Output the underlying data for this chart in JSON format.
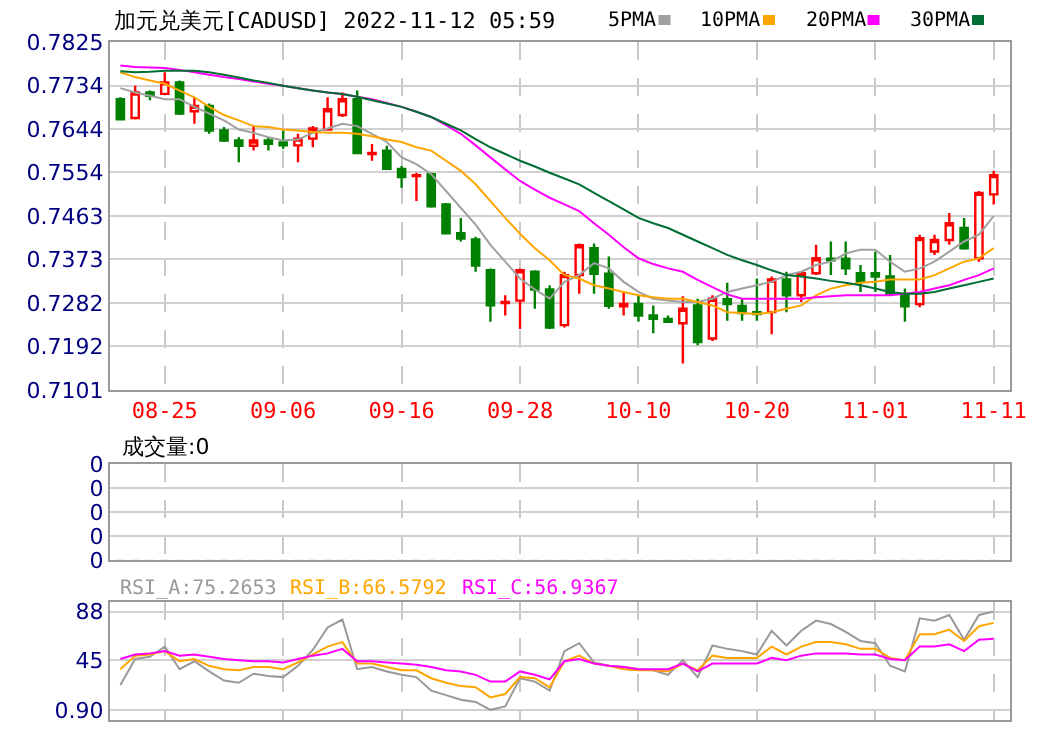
{
  "chart_data": [
    {
      "type": "candlestick",
      "title": "加元兑美元[CADUSD] 2022-11-12 05:59",
      "categories": [
        null,
        null,
        null,
        "08-25",
        null,
        null,
        null,
        null,
        null,
        null,
        null,
        "09-06",
        null,
        null,
        null,
        null,
        null,
        null,
        null,
        "09-16",
        null,
        null,
        null,
        null,
        null,
        null,
        null,
        "09-28",
        null,
        null,
        null,
        null,
        null,
        null,
        null,
        "10-10",
        null,
        null,
        null,
        null,
        null,
        null,
        null,
        "10-20",
        null,
        null,
        null,
        null,
        null,
        null,
        null,
        "11-01",
        null,
        null,
        null,
        null,
        null,
        null,
        null,
        "11-11"
      ],
      "ohlc": [
        [
          0.7706,
          0.771,
          0.7662,
          0.7664
        ],
        [
          0.7667,
          0.7734,
          0.7664,
          0.772
        ],
        [
          0.772,
          0.7724,
          0.7704,
          0.7713
        ],
        [
          0.7717,
          0.7762,
          0.7715,
          0.7741
        ],
        [
          0.7741,
          0.7745,
          0.7673,
          0.7676
        ],
        [
          0.7681,
          0.771,
          0.7655,
          0.7692
        ],
        [
          0.7692,
          0.7697,
          0.7634,
          0.7641
        ],
        [
          0.7641,
          0.7648,
          0.7617,
          0.762
        ],
        [
          0.762,
          0.7627,
          0.7575,
          0.7609
        ],
        [
          0.7609,
          0.765,
          0.7599,
          0.762
        ],
        [
          0.762,
          0.7627,
          0.7599,
          0.7613
        ],
        [
          0.7616,
          0.7641,
          0.7603,
          0.761
        ],
        [
          0.761,
          0.7634,
          0.7575,
          0.7624
        ],
        [
          0.7624,
          0.765,
          0.7606,
          0.7645
        ],
        [
          0.7643,
          0.771,
          0.7641,
          0.7685
        ],
        [
          0.7673,
          0.772,
          0.7669,
          0.7706
        ],
        [
          0.7706,
          0.7724,
          0.7594,
          0.7594
        ],
        [
          0.7592,
          0.7613,
          0.7578,
          0.7594
        ],
        [
          0.7599,
          0.7609,
          0.7561,
          0.7561
        ],
        [
          0.7561,
          0.7567,
          0.7522,
          0.7544
        ],
        [
          0.7546,
          0.7553,
          0.7494,
          0.7548
        ],
        [
          0.755,
          0.7553,
          0.748,
          0.7483
        ],
        [
          0.7487,
          0.749,
          0.7427,
          0.7427
        ],
        [
          0.7427,
          0.7459,
          0.741,
          0.7416
        ],
        [
          0.7414,
          0.742,
          0.7347,
          0.736
        ],
        [
          0.735,
          0.7354,
          0.7243,
          0.7277
        ],
        [
          0.7282,
          0.7298,
          0.7256,
          0.7284
        ],
        [
          0.7287,
          0.7354,
          0.7228,
          0.735
        ],
        [
          0.7347,
          0.735,
          0.727,
          0.731
        ],
        [
          0.731,
          0.7319,
          0.7228,
          0.7231
        ],
        [
          0.7236,
          0.7347,
          0.7231,
          0.734
        ],
        [
          0.734,
          0.7406,
          0.7301,
          0.7402
        ],
        [
          0.7396,
          0.7406,
          0.7301,
          0.7343
        ],
        [
          0.7343,
          0.7379,
          0.727,
          0.7276
        ],
        [
          0.7275,
          0.7305,
          0.7256,
          0.728
        ],
        [
          0.728,
          0.7298,
          0.7243,
          0.7256
        ],
        [
          0.7256,
          0.7277,
          0.7219,
          0.7249
        ],
        [
          0.7249,
          0.7256,
          0.7243,
          0.7243
        ],
        [
          0.724,
          0.7296,
          0.7156,
          0.727
        ],
        [
          0.7277,
          0.7291,
          0.7194,
          0.7201
        ],
        [
          0.7208,
          0.7298,
          0.7203,
          0.7291
        ],
        [
          0.729,
          0.7324,
          0.7245,
          0.728
        ],
        [
          0.7276,
          0.7291,
          0.7245,
          0.7261
        ],
        [
          0.7263,
          0.7333,
          0.7245,
          0.7259
        ],
        [
          0.7263,
          0.7337,
          0.7217,
          0.7331
        ],
        [
          0.7331,
          0.7347,
          0.7263,
          0.7298
        ],
        [
          0.7298,
          0.7347,
          0.7284,
          0.7344
        ],
        [
          0.7344,
          0.7403,
          0.734,
          0.7375
        ],
        [
          0.7374,
          0.741,
          0.734,
          0.7371
        ],
        [
          0.7374,
          0.741,
          0.734,
          0.7354
        ],
        [
          0.7344,
          0.7361,
          0.7305,
          0.7326
        ],
        [
          0.7344,
          0.7389,
          0.7305,
          0.7337
        ],
        [
          0.7337,
          0.7382,
          0.7298,
          0.7301
        ],
        [
          0.7298,
          0.7312,
          0.7243,
          0.7275
        ],
        [
          0.728,
          0.7424,
          0.7273,
          0.7417
        ],
        [
          0.7389,
          0.7424,
          0.7382,
          0.7413
        ],
        [
          0.7413,
          0.7469,
          0.7403,
          0.7448
        ],
        [
          0.7438,
          0.7459,
          0.7393,
          0.7396
        ],
        [
          0.7375,
          0.7515,
          0.7368,
          0.7511
        ],
        [
          0.7508,
          0.7557,
          0.7487,
          0.7548
        ]
      ],
      "colors": [
        "#008000",
        "#ff0000",
        "#008000",
        "#ff0000",
        "#008000",
        "#ff0000",
        "#008000",
        "#008000",
        "#008000",
        "#ff0000",
        "#008000",
        "#008000",
        "#ff0000",
        "#ff0000",
        "#ff0000",
        "#ff0000",
        "#008000",
        "#ff0000",
        "#008000",
        "#008000",
        "#ff0000",
        "#008000",
        "#008000",
        "#008000",
        "#008000",
        "#008000",
        "#ff0000",
        "#ff0000",
        "#008000",
        "#008000",
        "#ff0000",
        "#ff0000",
        "#008000",
        "#008000",
        "#ff0000",
        "#008000",
        "#008000",
        "#008000",
        "#ff0000",
        "#008000",
        "#ff0000",
        "#008000",
        "#008000",
        "#008000",
        "#ff0000",
        "#008000",
        "#ff0000",
        "#ff0000",
        "#008000",
        "#008000",
        "#008000",
        "#008000",
        "#008000",
        "#008000",
        "#ff0000",
        "#ff0000",
        "#ff0000",
        "#008000",
        "#ff0000",
        "#ff0000"
      ],
      "series": [
        {
          "name": "5PMA",
          "type": "line",
          "color": "#a0a0a0",
          "values": [
            0.7729,
            0.772,
            0.7713,
            0.7706,
            0.7706,
            0.769,
            0.7676,
            0.7662,
            0.7643,
            0.7636,
            0.7627,
            0.762,
            0.7622,
            0.7636,
            0.7645,
            0.7655,
            0.765,
            0.7634,
            0.7617,
            0.7585,
            0.7571,
            0.755,
            0.7515,
            0.748,
            0.7445,
            0.7403,
            0.7368,
            0.7333,
            0.731,
            0.7291,
            0.7326,
            0.734,
            0.7365,
            0.7354,
            0.7326,
            0.7305,
            0.7291,
            0.7287,
            0.7284,
            0.7284,
            0.7291,
            0.7305,
            0.7312,
            0.7319,
            0.7326,
            0.734,
            0.7347,
            0.7361,
            0.7368,
            0.7385,
            0.7393,
            0.7393,
            0.7368,
            0.7347,
            0.7354,
            0.7368,
            0.7389,
            0.741,
            0.7424,
            0.7463
          ]
        },
        {
          "name": "10PMA",
          "type": "line",
          "color": "#ffa500",
          "values": [
            0.7762,
            0.7752,
            0.7745,
            0.7738,
            0.7724,
            0.771,
            0.769,
            0.7673,
            0.7662,
            0.765,
            0.7648,
            0.7643,
            0.7641,
            0.7638,
            0.7636,
            0.7636,
            0.7634,
            0.7629,
            0.7622,
            0.7617,
            0.7606,
            0.7599,
            0.7578,
            0.7557,
            0.7529,
            0.7494,
            0.7459,
            0.7426,
            0.7396,
            0.7371,
            0.734,
            0.7333,
            0.7319,
            0.7312,
            0.7305,
            0.7298,
            0.7294,
            0.7291,
            0.7291,
            0.7284,
            0.7277,
            0.7263,
            0.7261,
            0.7259,
            0.7263,
            0.727,
            0.7277,
            0.7298,
            0.7312,
            0.7319,
            0.7324,
            0.7326,
            0.7331,
            0.7331,
            0.7331,
            0.734,
            0.7354,
            0.7368,
            0.7375,
            0.7396
          ]
        },
        {
          "name": "20PMA",
          "type": "line",
          "color": "#ff00ff",
          "values": [
            0.7776,
            0.7773,
            0.7772,
            0.7771,
            0.7767,
            0.7762,
            0.7757,
            0.7752,
            0.7748,
            0.7743,
            0.7738,
            0.7734,
            0.7729,
            0.7724,
            0.772,
            0.7717,
            0.7711,
            0.7706,
            0.7698,
            0.769,
            0.768,
            0.7669,
            0.7652,
            0.7634,
            0.761,
            0.7585,
            0.756,
            0.7536,
            0.7518,
            0.7501,
            0.7487,
            0.7473,
            0.7448,
            0.7424,
            0.7398,
            0.7375,
            0.7363,
            0.7354,
            0.7347,
            0.733,
            0.7315,
            0.73,
            0.7291,
            0.7291,
            0.7291,
            0.7291,
            0.7291,
            0.7294,
            0.7296,
            0.7298,
            0.7298,
            0.7298,
            0.7298,
            0.7301,
            0.7305,
            0.7312,
            0.7319,
            0.733,
            0.734,
            0.7354
          ]
        },
        {
          "name": "30PMA",
          "type": "line",
          "color": "#006e32",
          "values": [
            0.7764,
            0.7762,
            0.7763,
            0.7765,
            0.7765,
            0.7765,
            0.7762,
            0.7757,
            0.7751,
            0.7745,
            0.774,
            0.7734,
            0.7729,
            0.7724,
            0.772,
            0.7717,
            0.7711,
            0.7704,
            0.7697,
            0.769,
            0.768,
            0.7669,
            0.7655,
            0.7641,
            0.7623,
            0.7606,
            0.7592,
            0.7578,
            0.7566,
            0.7553,
            0.7541,
            0.7529,
            0.7511,
            0.7494,
            0.7477,
            0.7459,
            0.7448,
            0.7438,
            0.7424,
            0.741,
            0.7396,
            0.7382,
            0.7371,
            0.7361,
            0.735,
            0.734,
            0.7337,
            0.7333,
            0.7328,
            0.7324,
            0.7319,
            0.7312,
            0.7305,
            0.7301,
            0.7301,
            0.7305,
            0.7312,
            0.7319,
            0.7326,
            0.7333
          ]
        }
      ],
      "ylim": [
        0.7101,
        0.7825
      ],
      "yticks": [
        0.7101,
        0.7192,
        0.7282,
        0.7373,
        0.7463,
        0.7554,
        0.7644,
        0.7734,
        0.7825
      ],
      "grid": true,
      "legend": "top right"
    },
    {
      "type": "bar",
      "title": "成交量:0",
      "categories": [
        null,
        null,
        null,
        null,
        null,
        null,
        null,
        null,
        null,
        null,
        null,
        null,
        null,
        null,
        null,
        null,
        null,
        null,
        null,
        null,
        null,
        null,
        null,
        null,
        null,
        null,
        null,
        null,
        null,
        null,
        null,
        null,
        null,
        null,
        null,
        null,
        null,
        null,
        null,
        null,
        null,
        null,
        null,
        null,
        null,
        null,
        null,
        null,
        null,
        null,
        null,
        null,
        null,
        null,
        null,
        null,
        null,
        null,
        null,
        null
      ],
      "values": [
        0,
        0,
        0,
        0,
        0,
        0,
        0,
        0,
        0,
        0,
        0,
        0,
        0,
        0,
        0,
        0,
        0,
        0,
        0,
        0,
        0,
        0,
        0,
        0,
        0,
        0,
        0,
        0,
        0,
        0,
        0,
        0,
        0,
        0,
        0,
        0,
        0,
        0,
        0,
        0,
        0,
        0,
        0,
        0,
        0,
        0,
        0,
        0,
        0,
        0,
        0,
        0,
        0,
        0,
        0,
        0,
        0,
        0,
        0,
        0
      ],
      "ylim": [
        0,
        0.4
      ],
      "yticks": [
        {
          "value": 0,
          "label": "0"
        },
        {
          "value": 0.1,
          "label": "0"
        },
        {
          "value": 0.2,
          "label": "0"
        },
        {
          "value": 0.3,
          "label": "0"
        },
        {
          "value": 0.4,
          "label": "0"
        }
      ],
      "grid": true,
      "tick_labels": "y"
    },
    {
      "type": "line",
      "categories": [
        null,
        null,
        null,
        null,
        null,
        null,
        null,
        null,
        null,
        null,
        null,
        null,
        null,
        null,
        null,
        null,
        null,
        null,
        null,
        null,
        null,
        null,
        null,
        null,
        null,
        null,
        null,
        null,
        null,
        null,
        null,
        null,
        null,
        null,
        null,
        null,
        null,
        null,
        null,
        null,
        null,
        null,
        null,
        null,
        null,
        null,
        null,
        null,
        null,
        null,
        null,
        null,
        null,
        null,
        null,
        null,
        null,
        null,
        null,
        null
      ],
      "series": [
        {
          "name": "RSI_A:75.2653",
          "color": "#999999",
          "values": [
            23,
            46,
            48,
            57,
            37,
            44,
            35,
            27,
            25,
            33,
            31,
            30,
            40,
            54,
            74,
            81,
            37,
            39,
            35,
            32,
            30,
            18,
            14,
            10,
            8,
            1,
            4,
            29,
            26,
            18,
            53,
            60,
            43,
            40,
            39,
            37,
            36,
            32,
            45,
            30,
            58,
            55,
            53,
            50,
            71,
            58,
            71,
            80,
            77,
            70,
            62,
            60,
            40,
            35,
            82,
            80,
            85,
            63,
            85,
            88
          ]
        },
        {
          "name": "RSI_B:66.5792",
          "color": "#ffa500",
          "values": [
            37,
            49,
            50,
            53,
            44,
            46,
            40,
            37,
            36,
            39,
            39,
            37,
            43,
            50,
            57,
            61,
            42,
            42,
            39,
            36,
            36,
            29,
            25,
            22,
            21,
            12,
            15,
            30,
            29,
            21,
            44,
            49,
            42,
            40,
            37,
            36,
            36,
            35,
            42,
            36,
            49,
            47,
            47,
            47,
            57,
            50,
            57,
            61,
            61,
            59,
            55,
            55,
            47,
            45,
            68,
            68,
            72,
            62,
            75,
            78
          ]
        },
        {
          "name": "RSI_C:56.9367",
          "color": "#ff00ff",
          "values": [
            46,
            50,
            51,
            53,
            49,
            50,
            48,
            46,
            45,
            44,
            44,
            43,
            46,
            49,
            51,
            55,
            44,
            44,
            43,
            42,
            41,
            39,
            36,
            35,
            32,
            26,
            26,
            35,
            32,
            28,
            44,
            46,
            42,
            40,
            39,
            37,
            37,
            37,
            42,
            35,
            42,
            42,
            42,
            42,
            47,
            45,
            49,
            51,
            51,
            51,
            50,
            50,
            46,
            45,
            57,
            57,
            59,
            53,
            63,
            64
          ]
        }
      ],
      "ylim": [
        -8,
        96.5
      ],
      "yticks": [
        {
          "value": 0.9,
          "label": "0.90"
        },
        45,
        88
      ],
      "grid": true,
      "tick_labels": "y"
    }
  ]
}
